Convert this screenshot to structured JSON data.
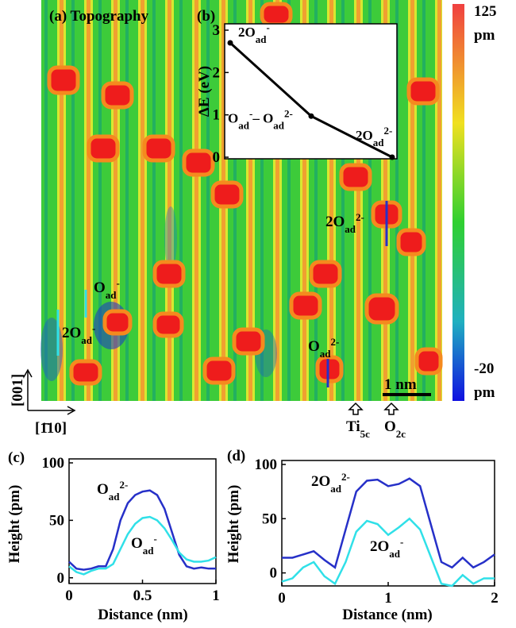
{
  "figure": {
    "panel_a": "(a) Topography",
    "colorbar": {
      "ticks": [
        125,
        -20
      ],
      "unit": "pm"
    },
    "annotations": [
      "Oad-",
      "2Oad-",
      "2Oad2-",
      "Oad2-"
    ],
    "scale_bar": "1 nm",
    "lattice": [
      "Ti5c",
      "O2c"
    ],
    "directions": [
      "[001]",
      "[1̄10]"
    ]
  },
  "chart_data": [
    {
      "type": "line",
      "title": "(b)",
      "ylabel": "ΔE (eV)",
      "categories": [
        "2Oad-",
        "Oad-– Oad2-",
        "2Oad2-"
      ],
      "values": [
        2.7,
        0.97,
        0
      ],
      "color": "#000000",
      "ylim": [
        0,
        3
      ],
      "yticks": [
        0,
        1,
        2,
        3
      ]
    },
    {
      "type": "line",
      "title": "(c)",
      "xlabel": "Distance (nm)",
      "ylabel": "Height (pm)",
      "x": [
        0,
        0.05,
        0.1,
        0.15,
        0.2,
        0.25,
        0.3,
        0.35,
        0.4,
        0.45,
        0.5,
        0.55,
        0.6,
        0.65,
        0.7,
        0.75,
        0.8,
        0.85,
        0.9,
        0.95,
        1
      ],
      "xlim": [
        0,
        1
      ],
      "xticks": [
        0,
        0.5,
        1
      ],
      "ylim": [
        -5,
        100
      ],
      "yticks": [
        0,
        50,
        100
      ],
      "series": [
        {
          "name": "Oad2-",
          "color": "#2630c8",
          "values": [
            14,
            8,
            7,
            8,
            10,
            10,
            25,
            50,
            65,
            72,
            75,
            76,
            72,
            60,
            40,
            20,
            10,
            8,
            9,
            8,
            8
          ]
        },
        {
          "name": "Oad-",
          "color": "#30e0e8",
          "values": [
            10,
            5,
            3,
            6,
            8,
            8,
            12,
            25,
            38,
            47,
            52,
            53,
            50,
            43,
            33,
            22,
            16,
            14,
            14,
            15,
            18
          ]
        }
      ]
    },
    {
      "type": "line",
      "title": "(d)",
      "xlabel": "Distance (nm)",
      "ylabel": "Height (pm)",
      "x": [
        0,
        0.1,
        0.2,
        0.3,
        0.4,
        0.5,
        0.6,
        0.7,
        0.8,
        0.9,
        1,
        1.1,
        1.2,
        1.3,
        1.4,
        1.5,
        1.6,
        1.7,
        1.8,
        1.9,
        2
      ],
      "xlim": [
        0,
        2
      ],
      "xticks": [
        0,
        1,
        2
      ],
      "ylim": [
        -12,
        100
      ],
      "yticks": [
        0,
        50,
        100
      ],
      "series": [
        {
          "name": "2Oad2-",
          "color": "#2630c8",
          "values": [
            14,
            14,
            17,
            20,
            12,
            5,
            40,
            75,
            85,
            86,
            80,
            82,
            87,
            80,
            45,
            10,
            5,
            14,
            5,
            10,
            17
          ]
        },
        {
          "name": "2Oad-",
          "color": "#30e0e8",
          "values": [
            -8,
            -5,
            5,
            10,
            -3,
            -10,
            10,
            38,
            48,
            45,
            35,
            42,
            50,
            40,
            15,
            -10,
            -12,
            -2,
            -10,
            -5,
            -5
          ]
        }
      ]
    }
  ]
}
